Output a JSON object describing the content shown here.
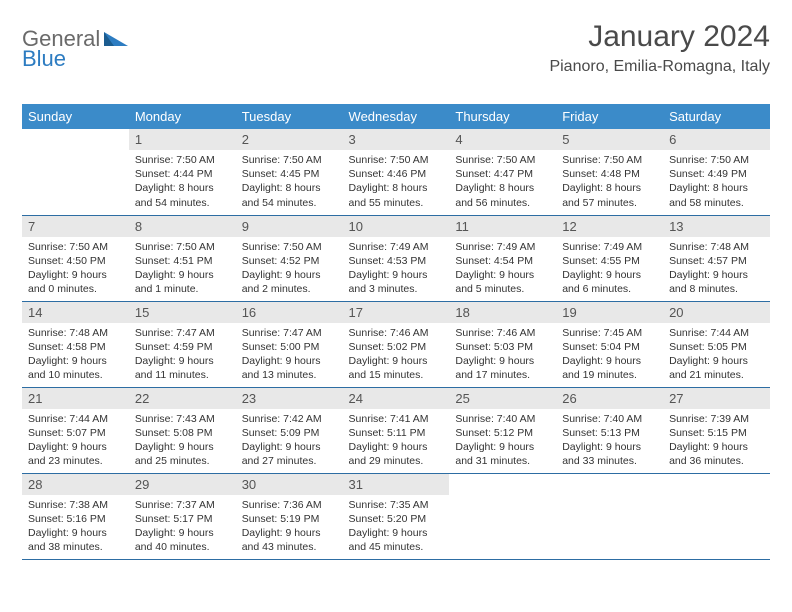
{
  "brand": {
    "part1": "General",
    "part2": "Blue"
  },
  "title": "January 2024",
  "location": "Pianoro, Emilia-Romagna, Italy",
  "colors": {
    "header_bg": "#3b8bc9",
    "header_text": "#ffffff",
    "daynum_bg": "#e8e8e8",
    "border": "#2d6da3",
    "brand_gray": "#6a6a6a",
    "brand_blue": "#2d7cc1"
  },
  "weekdays": [
    "Sunday",
    "Monday",
    "Tuesday",
    "Wednesday",
    "Thursday",
    "Friday",
    "Saturday"
  ],
  "weeks": [
    [
      {
        "n": "",
        "sr": "",
        "ss": "",
        "dl": ""
      },
      {
        "n": "1",
        "sr": "Sunrise: 7:50 AM",
        "ss": "Sunset: 4:44 PM",
        "dl": "Daylight: 8 hours and 54 minutes."
      },
      {
        "n": "2",
        "sr": "Sunrise: 7:50 AM",
        "ss": "Sunset: 4:45 PM",
        "dl": "Daylight: 8 hours and 54 minutes."
      },
      {
        "n": "3",
        "sr": "Sunrise: 7:50 AM",
        "ss": "Sunset: 4:46 PM",
        "dl": "Daylight: 8 hours and 55 minutes."
      },
      {
        "n": "4",
        "sr": "Sunrise: 7:50 AM",
        "ss": "Sunset: 4:47 PM",
        "dl": "Daylight: 8 hours and 56 minutes."
      },
      {
        "n": "5",
        "sr": "Sunrise: 7:50 AM",
        "ss": "Sunset: 4:48 PM",
        "dl": "Daylight: 8 hours and 57 minutes."
      },
      {
        "n": "6",
        "sr": "Sunrise: 7:50 AM",
        "ss": "Sunset: 4:49 PM",
        "dl": "Daylight: 8 hours and 58 minutes."
      }
    ],
    [
      {
        "n": "7",
        "sr": "Sunrise: 7:50 AM",
        "ss": "Sunset: 4:50 PM",
        "dl": "Daylight: 9 hours and 0 minutes."
      },
      {
        "n": "8",
        "sr": "Sunrise: 7:50 AM",
        "ss": "Sunset: 4:51 PM",
        "dl": "Daylight: 9 hours and 1 minute."
      },
      {
        "n": "9",
        "sr": "Sunrise: 7:50 AM",
        "ss": "Sunset: 4:52 PM",
        "dl": "Daylight: 9 hours and 2 minutes."
      },
      {
        "n": "10",
        "sr": "Sunrise: 7:49 AM",
        "ss": "Sunset: 4:53 PM",
        "dl": "Daylight: 9 hours and 3 minutes."
      },
      {
        "n": "11",
        "sr": "Sunrise: 7:49 AM",
        "ss": "Sunset: 4:54 PM",
        "dl": "Daylight: 9 hours and 5 minutes."
      },
      {
        "n": "12",
        "sr": "Sunrise: 7:49 AM",
        "ss": "Sunset: 4:55 PM",
        "dl": "Daylight: 9 hours and 6 minutes."
      },
      {
        "n": "13",
        "sr": "Sunrise: 7:48 AM",
        "ss": "Sunset: 4:57 PM",
        "dl": "Daylight: 9 hours and 8 minutes."
      }
    ],
    [
      {
        "n": "14",
        "sr": "Sunrise: 7:48 AM",
        "ss": "Sunset: 4:58 PM",
        "dl": "Daylight: 9 hours and 10 minutes."
      },
      {
        "n": "15",
        "sr": "Sunrise: 7:47 AM",
        "ss": "Sunset: 4:59 PM",
        "dl": "Daylight: 9 hours and 11 minutes."
      },
      {
        "n": "16",
        "sr": "Sunrise: 7:47 AM",
        "ss": "Sunset: 5:00 PM",
        "dl": "Daylight: 9 hours and 13 minutes."
      },
      {
        "n": "17",
        "sr": "Sunrise: 7:46 AM",
        "ss": "Sunset: 5:02 PM",
        "dl": "Daylight: 9 hours and 15 minutes."
      },
      {
        "n": "18",
        "sr": "Sunrise: 7:46 AM",
        "ss": "Sunset: 5:03 PM",
        "dl": "Daylight: 9 hours and 17 minutes."
      },
      {
        "n": "19",
        "sr": "Sunrise: 7:45 AM",
        "ss": "Sunset: 5:04 PM",
        "dl": "Daylight: 9 hours and 19 minutes."
      },
      {
        "n": "20",
        "sr": "Sunrise: 7:44 AM",
        "ss": "Sunset: 5:05 PM",
        "dl": "Daylight: 9 hours and 21 minutes."
      }
    ],
    [
      {
        "n": "21",
        "sr": "Sunrise: 7:44 AM",
        "ss": "Sunset: 5:07 PM",
        "dl": "Daylight: 9 hours and 23 minutes."
      },
      {
        "n": "22",
        "sr": "Sunrise: 7:43 AM",
        "ss": "Sunset: 5:08 PM",
        "dl": "Daylight: 9 hours and 25 minutes."
      },
      {
        "n": "23",
        "sr": "Sunrise: 7:42 AM",
        "ss": "Sunset: 5:09 PM",
        "dl": "Daylight: 9 hours and 27 minutes."
      },
      {
        "n": "24",
        "sr": "Sunrise: 7:41 AM",
        "ss": "Sunset: 5:11 PM",
        "dl": "Daylight: 9 hours and 29 minutes."
      },
      {
        "n": "25",
        "sr": "Sunrise: 7:40 AM",
        "ss": "Sunset: 5:12 PM",
        "dl": "Daylight: 9 hours and 31 minutes."
      },
      {
        "n": "26",
        "sr": "Sunrise: 7:40 AM",
        "ss": "Sunset: 5:13 PM",
        "dl": "Daylight: 9 hours and 33 minutes."
      },
      {
        "n": "27",
        "sr": "Sunrise: 7:39 AM",
        "ss": "Sunset: 5:15 PM",
        "dl": "Daylight: 9 hours and 36 minutes."
      }
    ],
    [
      {
        "n": "28",
        "sr": "Sunrise: 7:38 AM",
        "ss": "Sunset: 5:16 PM",
        "dl": "Daylight: 9 hours and 38 minutes."
      },
      {
        "n": "29",
        "sr": "Sunrise: 7:37 AM",
        "ss": "Sunset: 5:17 PM",
        "dl": "Daylight: 9 hours and 40 minutes."
      },
      {
        "n": "30",
        "sr": "Sunrise: 7:36 AM",
        "ss": "Sunset: 5:19 PM",
        "dl": "Daylight: 9 hours and 43 minutes."
      },
      {
        "n": "31",
        "sr": "Sunrise: 7:35 AM",
        "ss": "Sunset: 5:20 PM",
        "dl": "Daylight: 9 hours and 45 minutes."
      },
      {
        "n": "",
        "sr": "",
        "ss": "",
        "dl": ""
      },
      {
        "n": "",
        "sr": "",
        "ss": "",
        "dl": ""
      },
      {
        "n": "",
        "sr": "",
        "ss": "",
        "dl": ""
      }
    ]
  ]
}
